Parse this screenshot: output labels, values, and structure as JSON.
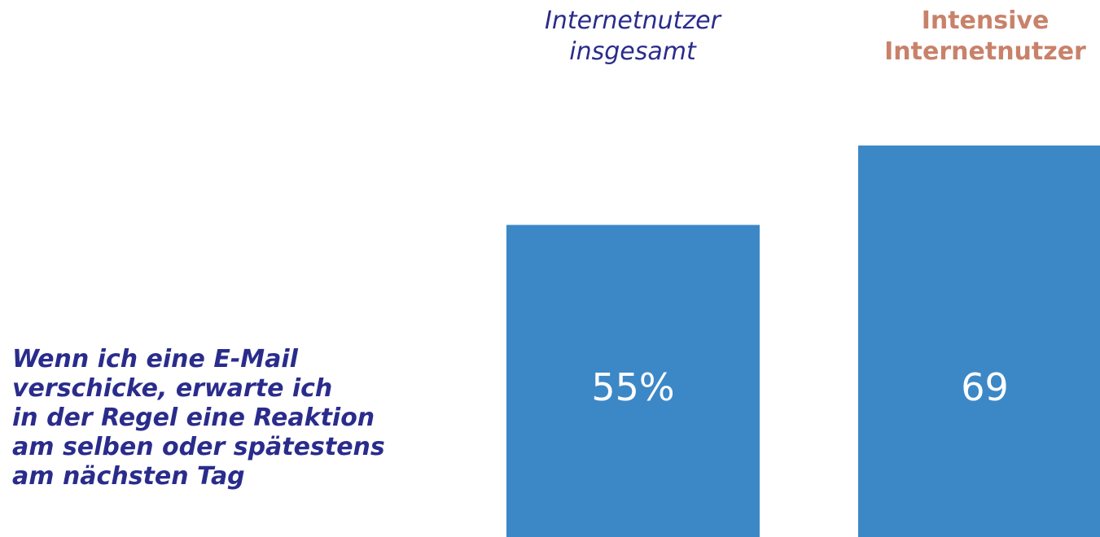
{
  "statement": "Wenn ich eine E-Mail\nverschicke, erwarte ich\nin der Regel eine Reaktion\nam selben oder spätestens\nam nächsten Tag",
  "chart_data": {
    "type": "bar",
    "categories": [
      "Internetnutzer\ninsgesamt",
      "Intensive\nInternetnutzer"
    ],
    "values": [
      55,
      69
    ],
    "labels": [
      "55%",
      "69"
    ],
    "title": "",
    "xlabel": "",
    "ylabel": "",
    "ylim": [
      0,
      100
    ],
    "grid": false,
    "colors": {
      "bar": "#3c88c7",
      "bar_label": "#ffffff",
      "category_total": "#2a2c8c",
      "category_intensive": "#c8826a",
      "statement": "#2a2c8c"
    }
  }
}
